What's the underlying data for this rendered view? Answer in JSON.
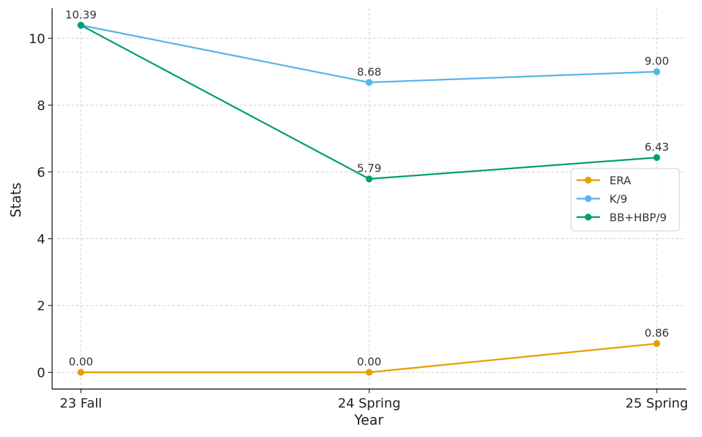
{
  "chart_data": {
    "type": "line",
    "title": "",
    "xlabel": "Year",
    "ylabel": "Stats",
    "categories": [
      "23 Fall",
      "24 Spring",
      "25 Spring"
    ],
    "ylim": [
      -0.5,
      10.9
    ],
    "yticks": [
      0,
      2,
      4,
      6,
      8,
      10
    ],
    "grid": true,
    "legend_position": "center-right",
    "series": [
      {
        "name": "ERA",
        "color": "#E69F00",
        "values": [
          0.0,
          0.0,
          0.86
        ],
        "labels": [
          "0.00",
          "0.00",
          "0.86"
        ]
      },
      {
        "name": "K/9",
        "color": "#56B4E9",
        "values": [
          10.39,
          8.68,
          9.0
        ],
        "labels": [
          "",
          "8.68",
          "9.00"
        ]
      },
      {
        "name": "BB+HBP/9",
        "color": "#009E73",
        "values": [
          10.39,
          5.79,
          6.43
        ],
        "labels": [
          "10.39",
          "5.79",
          "6.43"
        ]
      }
    ]
  }
}
